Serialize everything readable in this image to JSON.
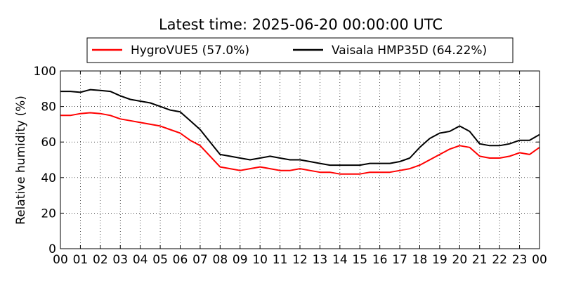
{
  "chart_data": {
    "type": "line",
    "title": "Latest time: 2025-06-20 00:00:00 UTC",
    "xlabel": "",
    "ylabel": "Relative humidity (%)",
    "xlim": [
      0,
      24
    ],
    "ylim": [
      0,
      100
    ],
    "x_tick_labels": [
      "00",
      "01",
      "02",
      "03",
      "04",
      "05",
      "06",
      "07",
      "08",
      "09",
      "10",
      "11",
      "12",
      "13",
      "14",
      "15",
      "16",
      "17",
      "18",
      "19",
      "20",
      "21",
      "22",
      "23",
      "00"
    ],
    "y_ticks": [
      0,
      20,
      40,
      60,
      80,
      100
    ],
    "grid": true,
    "legend_position": "top",
    "x_hours": [
      0,
      0.5,
      1,
      1.5,
      2,
      2.5,
      3,
      3.5,
      4,
      4.5,
      5,
      5.5,
      6,
      6.5,
      7,
      7.5,
      8,
      8.5,
      9,
      9.5,
      10,
      10.5,
      11,
      11.5,
      12,
      12.5,
      13,
      13.5,
      14,
      14.5,
      15,
      15.5,
      16,
      16.5,
      17,
      17.5,
      18,
      18.5,
      19,
      19.5,
      20,
      20.5,
      21,
      21.5,
      22,
      22.5,
      23,
      23.5,
      24
    ],
    "series": [
      {
        "name": "HygroVUE5 (57.0%)",
        "color": "#ff0000",
        "values": [
          75,
          75,
          76,
          76.5,
          76,
          75,
          73,
          72,
          71,
          70,
          69,
          67,
          65,
          61,
          58,
          52,
          46,
          45,
          44,
          45,
          46,
          45,
          44,
          44,
          45,
          44,
          43,
          43,
          42,
          42,
          42,
          43,
          43,
          43,
          44,
          45,
          47,
          50,
          53,
          56,
          58,
          57,
          52,
          51,
          51,
          52,
          54,
          53,
          57
        ]
      },
      {
        "name": "Vaisala HMP35D (64.22%)",
        "color": "#000000",
        "values": [
          88.5,
          88.5,
          88,
          89.5,
          89,
          88.5,
          86,
          84,
          83,
          82,
          80,
          78,
          77,
          72,
          67,
          60,
          53,
          52,
          51,
          50,
          51,
          52,
          51,
          50,
          50,
          49,
          48,
          47,
          47,
          47,
          47,
          48,
          48,
          48,
          49,
          51,
          57,
          62,
          65,
          66,
          69,
          66,
          59,
          58,
          58,
          59,
          61,
          61,
          64.2
        ]
      }
    ]
  }
}
